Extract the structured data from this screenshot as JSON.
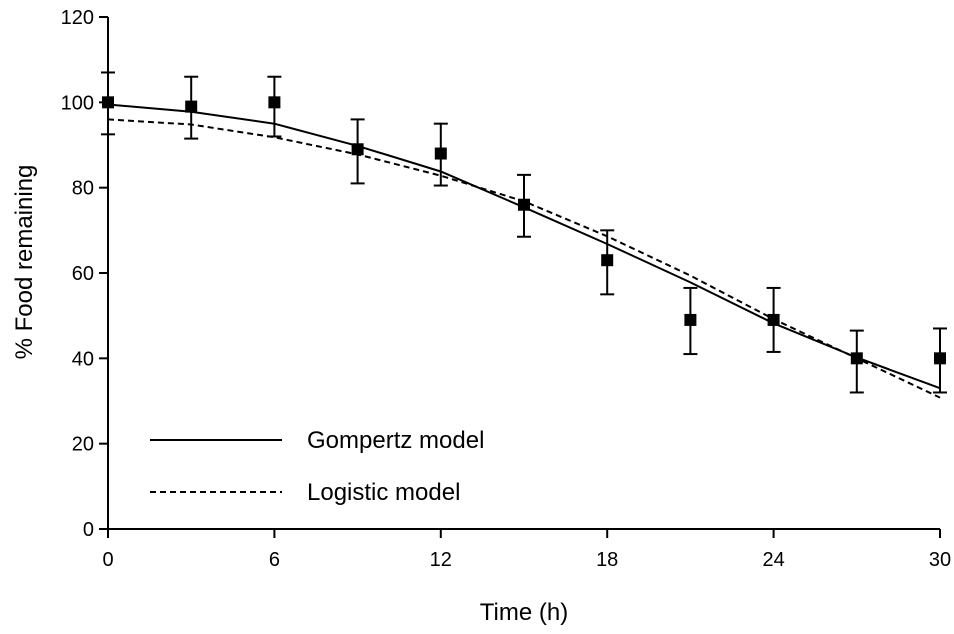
{
  "chart_data": {
    "type": "line",
    "xlabel": "Time (h)",
    "ylabel": "% Food remaining",
    "xlim": [
      0,
      30
    ],
    "ylim": [
      0,
      120
    ],
    "x_ticks": [
      0,
      6,
      12,
      18,
      24,
      30
    ],
    "y_ticks": [
      0,
      20,
      40,
      60,
      80,
      100,
      120
    ],
    "grid": false,
    "legend_position": "bottom-left",
    "observed": {
      "x": [
        0,
        3,
        6,
        9,
        12,
        15,
        18,
        21,
        24,
        27,
        30
      ],
      "y": [
        100,
        99,
        100,
        89,
        88,
        76,
        63,
        49,
        49,
        40,
        40
      ],
      "error_low": [
        92.5,
        91.5,
        92,
        81,
        80.5,
        68.5,
        55,
        41,
        41.5,
        32,
        32
      ],
      "error_high": [
        107,
        106,
        106,
        96,
        95,
        83,
        70,
        56.5,
        56.5,
        46.5,
        47
      ]
    },
    "series": [
      {
        "name": "Gompertz model",
        "style": "solid",
        "x": [
          0,
          3,
          6,
          9,
          12,
          15,
          18,
          21,
          24,
          27,
          30
        ],
        "y": [
          99.5,
          97.8,
          95,
          89.8,
          83.8,
          75.4,
          66.8,
          57.8,
          48.2,
          40.2,
          33
        ]
      },
      {
        "name": "Logistic model",
        "style": "dashed",
        "x": [
          0,
          3,
          6,
          9,
          12,
          15,
          18,
          21,
          24,
          27,
          30
        ],
        "y": [
          96,
          94.8,
          91.8,
          87.8,
          82.8,
          76.8,
          68.6,
          59.4,
          49.2,
          40,
          30.8
        ]
      }
    ]
  }
}
